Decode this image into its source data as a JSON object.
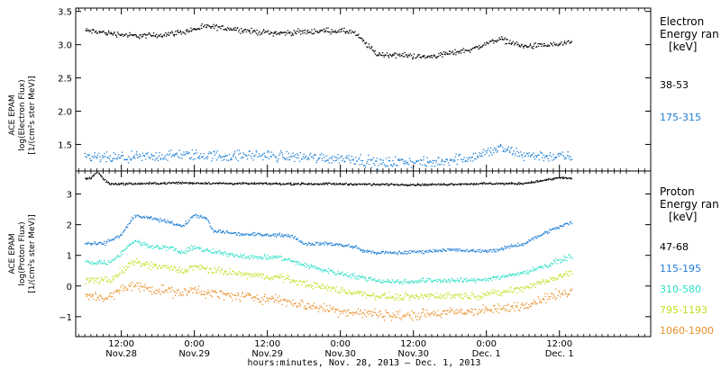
{
  "chart_data": [
    {
      "type": "scatter",
      "panel": "electron",
      "ylabel_lines": [
        "ACE EPAM",
        "log(Electron Flux)",
        "[1/(cm²s ster MeV)]"
      ],
      "ylim": [
        1.1,
        3.55
      ],
      "yticks": [
        1.5,
        2.0,
        2.5,
        3.0,
        3.5
      ],
      "ytick_labels": [
        "1.5",
        "2.0",
        "2.5",
        "3.0",
        "3.5"
      ],
      "legend_title_lines": [
        "Electron",
        "Energy ran",
        "[keV]"
      ],
      "series": [
        {
          "name": "38-53",
          "color": "#000000",
          "x": [
            0,
            4,
            8,
            12,
            16,
            20,
            24,
            28,
            32,
            36,
            40,
            44,
            48,
            52,
            56,
            60,
            64,
            68,
            72,
            76,
            80
          ],
          "y": [
            3.22,
            3.18,
            3.14,
            3.15,
            3.2,
            3.28,
            3.25,
            3.2,
            3.18,
            3.2,
            3.22,
            3.2,
            2.86,
            2.85,
            2.82,
            2.88,
            2.95,
            3.1,
            2.98,
            3.0,
            3.03
          ],
          "spread": 0.025
        },
        {
          "name": "175-315",
          "color": "#1e7fd4",
          "x": [
            0,
            4,
            8,
            12,
            16,
            20,
            24,
            28,
            32,
            36,
            40,
            44,
            48,
            52,
            56,
            60,
            64,
            68,
            72,
            76,
            80
          ],
          "y": [
            1.32,
            1.3,
            1.31,
            1.33,
            1.35,
            1.34,
            1.33,
            1.35,
            1.33,
            1.32,
            1.3,
            1.3,
            1.22,
            1.25,
            1.22,
            1.28,
            1.32,
            1.45,
            1.35,
            1.33,
            1.32
          ],
          "spread": 0.05
        }
      ]
    },
    {
      "type": "scatter",
      "panel": "proton",
      "ylabel_lines": [
        "ACE EPAM",
        "log(Proton Flux)",
        "[1/(cm²s ster MeV)]"
      ],
      "ylim": [
        -1.65,
        3.75
      ],
      "yticks": [
        -1,
        0,
        1,
        2,
        3
      ],
      "ytick_labels": [
        "−1",
        "0",
        "1",
        "2",
        "3"
      ],
      "legend_title_lines": [
        "Proton",
        "Energy ran",
        "[keV]"
      ],
      "series": [
        {
          "name": "47-68",
          "color": "#000000",
          "x": [
            0,
            1,
            2,
            3,
            4,
            8,
            16,
            24,
            32,
            40,
            48,
            56,
            64,
            72,
            76,
            78,
            80
          ],
          "y": [
            3.5,
            3.55,
            3.75,
            3.5,
            3.35,
            3.35,
            3.38,
            3.36,
            3.35,
            3.35,
            3.33,
            3.32,
            3.35,
            3.36,
            3.48,
            3.55,
            3.52
          ],
          "spread": 0.02
        },
        {
          "name": "115-195",
          "color": "#1e7fd4",
          "x": [
            0,
            3,
            6,
            8,
            10,
            14,
            16,
            18,
            20,
            21,
            22,
            24,
            26,
            30,
            34,
            36,
            40,
            44,
            46,
            48,
            52,
            56,
            60,
            64,
            68,
            72,
            76,
            80
          ],
          "y": [
            1.4,
            1.4,
            1.7,
            2.3,
            2.25,
            2.1,
            1.95,
            2.35,
            2.2,
            1.8,
            1.8,
            1.75,
            1.7,
            1.7,
            1.65,
            1.4,
            1.4,
            1.3,
            1.15,
            1.1,
            1.1,
            1.15,
            1.2,
            1.15,
            1.2,
            1.4,
            1.8,
            2.1
          ],
          "spread": 0.035
        },
        {
          "name": "310-580",
          "color": "#2fe0c8",
          "x": [
            0,
            4,
            6,
            8,
            10,
            14,
            16,
            18,
            20,
            22,
            24,
            28,
            32,
            36,
            40,
            44,
            48,
            52,
            56,
            60,
            64,
            68,
            72,
            76,
            80
          ],
          "y": [
            0.8,
            0.78,
            1.1,
            1.5,
            1.35,
            1.25,
            1.1,
            1.3,
            1.15,
            1.1,
            1.05,
            0.95,
            0.95,
            0.7,
            0.5,
            0.35,
            0.2,
            0.15,
            0.2,
            0.2,
            0.2,
            0.3,
            0.45,
            0.7,
            1.0
          ],
          "spread": 0.05
        },
        {
          "name": "795-1193",
          "color": "#c0e020",
          "x": [
            0,
            4,
            6,
            8,
            10,
            14,
            16,
            18,
            20,
            22,
            24,
            28,
            32,
            36,
            40,
            44,
            48,
            52,
            56,
            60,
            64,
            68,
            72,
            76,
            80
          ],
          "y": [
            0.2,
            0.2,
            0.5,
            0.8,
            0.7,
            0.6,
            0.5,
            0.65,
            0.55,
            0.5,
            0.45,
            0.35,
            0.3,
            0.1,
            -0.05,
            -0.2,
            -0.3,
            -0.35,
            -0.3,
            -0.3,
            -0.3,
            -0.2,
            -0.05,
            0.2,
            0.45
          ],
          "spread": 0.07
        },
        {
          "name": "1060-1900",
          "color": "#e8902a",
          "x": [
            0,
            4,
            6,
            8,
            10,
            14,
            16,
            18,
            20,
            22,
            24,
            28,
            32,
            36,
            40,
            44,
            48,
            52,
            56,
            60,
            64,
            68,
            72,
            76,
            80
          ],
          "y": [
            -0.3,
            -0.35,
            -0.1,
            0.05,
            -0.05,
            -0.15,
            -0.25,
            -0.1,
            -0.2,
            -0.25,
            -0.3,
            -0.35,
            -0.45,
            -0.6,
            -0.75,
            -0.85,
            -0.9,
            -0.95,
            -0.9,
            -0.85,
            -0.8,
            -0.75,
            -0.6,
            -0.35,
            -0.15
          ],
          "spread": 0.1
        }
      ]
    }
  ],
  "xaxis": {
    "xlim": [
      -1.5,
      93
    ],
    "ticks": [
      {
        "pos": 6,
        "line1": "12:00",
        "line2": "Nov.28"
      },
      {
        "pos": 18,
        "line1": "0:00",
        "line2": "Nov.29"
      },
      {
        "pos": 30,
        "line1": "12:00",
        "line2": "Nov.29"
      },
      {
        "pos": 42,
        "line1": "0:00",
        "line2": "Nov.30"
      },
      {
        "pos": 54,
        "line1": "12:00",
        "line2": "Nov.30"
      },
      {
        "pos": 66,
        "line1": "0:00",
        "line2": "Dec. 1"
      },
      {
        "pos": 78,
        "line1": "12:00",
        "line2": "Dec. 1"
      }
    ],
    "label": "hours:minutes, Nov. 28, 2013 – Dec. 1, 2013"
  }
}
